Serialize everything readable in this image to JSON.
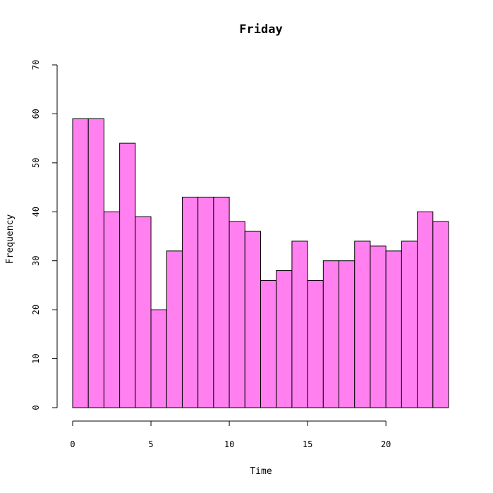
{
  "chart_data": {
    "type": "bar",
    "title": "Friday",
    "xlabel": "Time",
    "ylabel": "Frequency",
    "bin_edges": [
      0,
      1,
      2,
      3,
      4,
      5,
      6,
      7,
      8,
      9,
      10,
      11,
      12,
      13,
      14,
      15,
      16,
      17,
      18,
      19,
      20,
      21,
      22,
      23,
      24
    ],
    "values": [
      59,
      59,
      40,
      54,
      39,
      20,
      32,
      43,
      43,
      43,
      38,
      36,
      26,
      28,
      34,
      26,
      30,
      30,
      34,
      33,
      32,
      34,
      40,
      38
    ],
    "xlim": [
      0,
      24
    ],
    "ylim": [
      0,
      70
    ],
    "xticks": [
      0,
      5,
      10,
      15,
      20
    ],
    "yticks": [
      0,
      10,
      20,
      30,
      40,
      50,
      60,
      70
    ],
    "bar_color": "#FF80EE",
    "grid": false
  }
}
